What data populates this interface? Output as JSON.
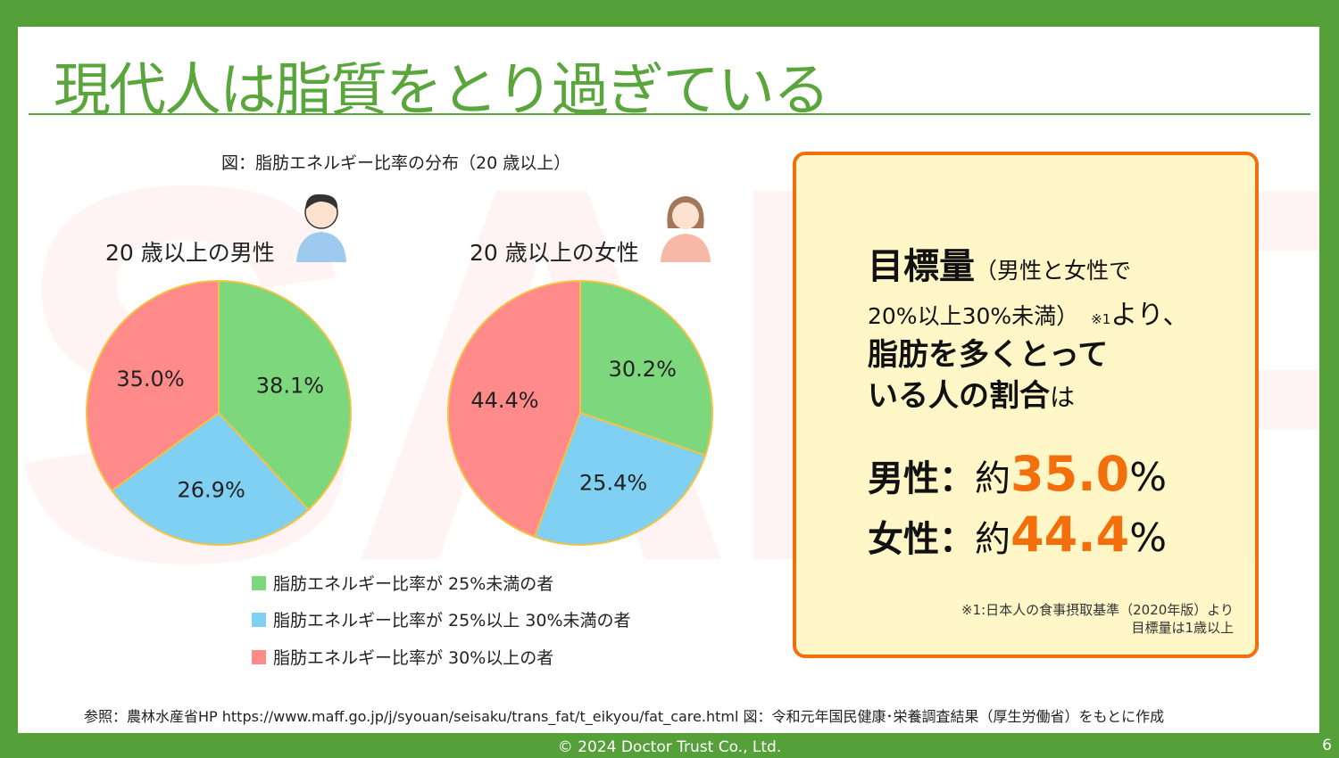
{
  "title": "現代人は脂質をとり過ぎている",
  "watermark": "SAMPLE",
  "figure_title": "図：脂肪エネルギー比率の分布（20 歳以上）",
  "colors": {
    "green": "#7dd87d",
    "blue": "#7fd0f2",
    "red": "#ff8a8a",
    "accent": "#f36f0c",
    "brand": "#56a03a"
  },
  "chart_data": [
    {
      "type": "pie",
      "title": "20 歳以上の男性",
      "categories": [
        "脂肪エネルギー比率が 25%未満の者",
        "脂肪エネルギー比率が 25%以上 30%未満の者",
        "脂肪エネルギー比率が 30%以上の者"
      ],
      "values": [
        38.1,
        26.9,
        35.0
      ],
      "labels": [
        "38.1%",
        "26.9%",
        "35.0%"
      ]
    },
    {
      "type": "pie",
      "title": "20 歳以上の女性",
      "categories": [
        "脂肪エネルギー比率が 25%未満の者",
        "脂肪エネルギー比率が 25%以上 30%未満の者",
        "脂肪エネルギー比率が 30%以上の者"
      ],
      "values": [
        30.2,
        25.4,
        44.4
      ],
      "labels": [
        "30.2%",
        "25.4%",
        "44.4%"
      ]
    }
  ],
  "legend": [
    "脂肪エネルギー比率が 25%未満の者",
    "脂肪エネルギー比率が 25%以上 30%未満の者",
    "脂肪エネルギー比率が 30%以上の者"
  ],
  "box": {
    "line1_bold": "目標量",
    "line1_rest": "（男性と女性で",
    "line2": "20%以上30%未満）",
    "line2_note": "※1",
    "line2_end": "より、",
    "line3": "脂肪を多くとって",
    "line4_bold": "いる人の割合",
    "line4_rest": "は",
    "men_label": "男性：",
    "approx": "約",
    "men_value": "35.0",
    "women_label": "女性：",
    "women_value": "44.4",
    "pct": "%",
    "footnote1": "※1:日本人の食事摂取基準（2020年版）より",
    "footnote2": "目標量は1歳以上"
  },
  "source": "参照：農林水産省HP https://www.maff.go.jp/j/syouan/seisaku/trans_fat/t_eikyou/fat_care.html 図：令和元年国民健康･栄養調査結果（厚生労働省）をもとに作成",
  "copyright": "© 2024 Doctor Trust Co., Ltd.",
  "page_number": "6"
}
